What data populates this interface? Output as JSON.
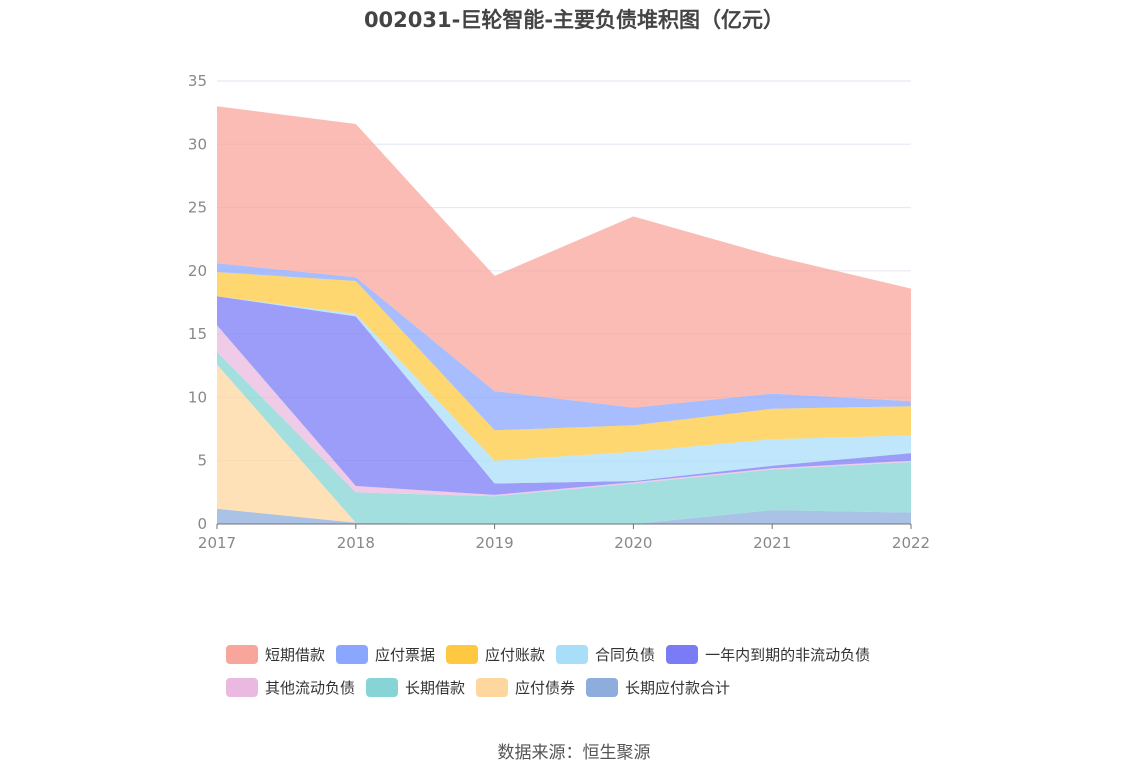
{
  "title": "002031-巨轮智能-主要负债堆积图（亿元）",
  "source": "数据来源：恒生聚源",
  "chart_data": {
    "type": "area",
    "stacked": true,
    "categories": [
      "2017",
      "2018",
      "2019",
      "2020",
      "2021",
      "2022"
    ],
    "ylim": [
      0,
      35
    ],
    "yticks": [
      "0",
      "5",
      "10",
      "15",
      "20",
      "25",
      "30",
      "35"
    ],
    "grid": true,
    "legend_position": "bottom",
    "series": [
      {
        "name": "长期应付款合计",
        "color": "#8eaddc",
        "values": [
          1.2,
          0.1,
          0.0,
          0.0,
          1.1,
          0.9
        ]
      },
      {
        "name": "应付债券",
        "color": "#fdd79e",
        "values": [
          11.4,
          0.0,
          0.0,
          0.0,
          0.0,
          0.0
        ]
      },
      {
        "name": "长期借款",
        "color": "#86d4d6",
        "values": [
          1.0,
          2.4,
          2.2,
          3.2,
          3.2,
          4.0
        ]
      },
      {
        "name": "其他流动负债",
        "color": "#e9b9df",
        "values": [
          2.1,
          0.5,
          0.1,
          0.1,
          0.1,
          0.1
        ]
      },
      {
        "name": "一年内到期的非流动负债",
        "color": "#7b7cf5",
        "values": [
          2.3,
          13.4,
          0.9,
          0.1,
          0.2,
          0.6
        ]
      },
      {
        "name": "合同负债",
        "color": "#a9def9",
        "values": [
          0.0,
          0.2,
          1.8,
          2.3,
          2.1,
          1.4
        ]
      },
      {
        "name": "应付账款",
        "color": "#fec941",
        "values": [
          1.9,
          2.6,
          2.4,
          2.1,
          2.4,
          2.3
        ]
      },
      {
        "name": "应付票据",
        "color": "#8ba7fd",
        "values": [
          0.7,
          0.3,
          3.1,
          1.4,
          1.2,
          0.4
        ]
      },
      {
        "name": "短期借款",
        "color": "#f8a59c",
        "values": [
          12.4,
          12.1,
          9.1,
          15.1,
          10.9,
          8.9
        ]
      }
    ],
    "legend_rows": [
      [
        "短期借款",
        "应付票据",
        "应付账款",
        "合同负债",
        "一年内到期的非流动负债"
      ],
      [
        "其他流动负债",
        "长期借款",
        "应付债券",
        "长期应付款合计"
      ]
    ]
  }
}
